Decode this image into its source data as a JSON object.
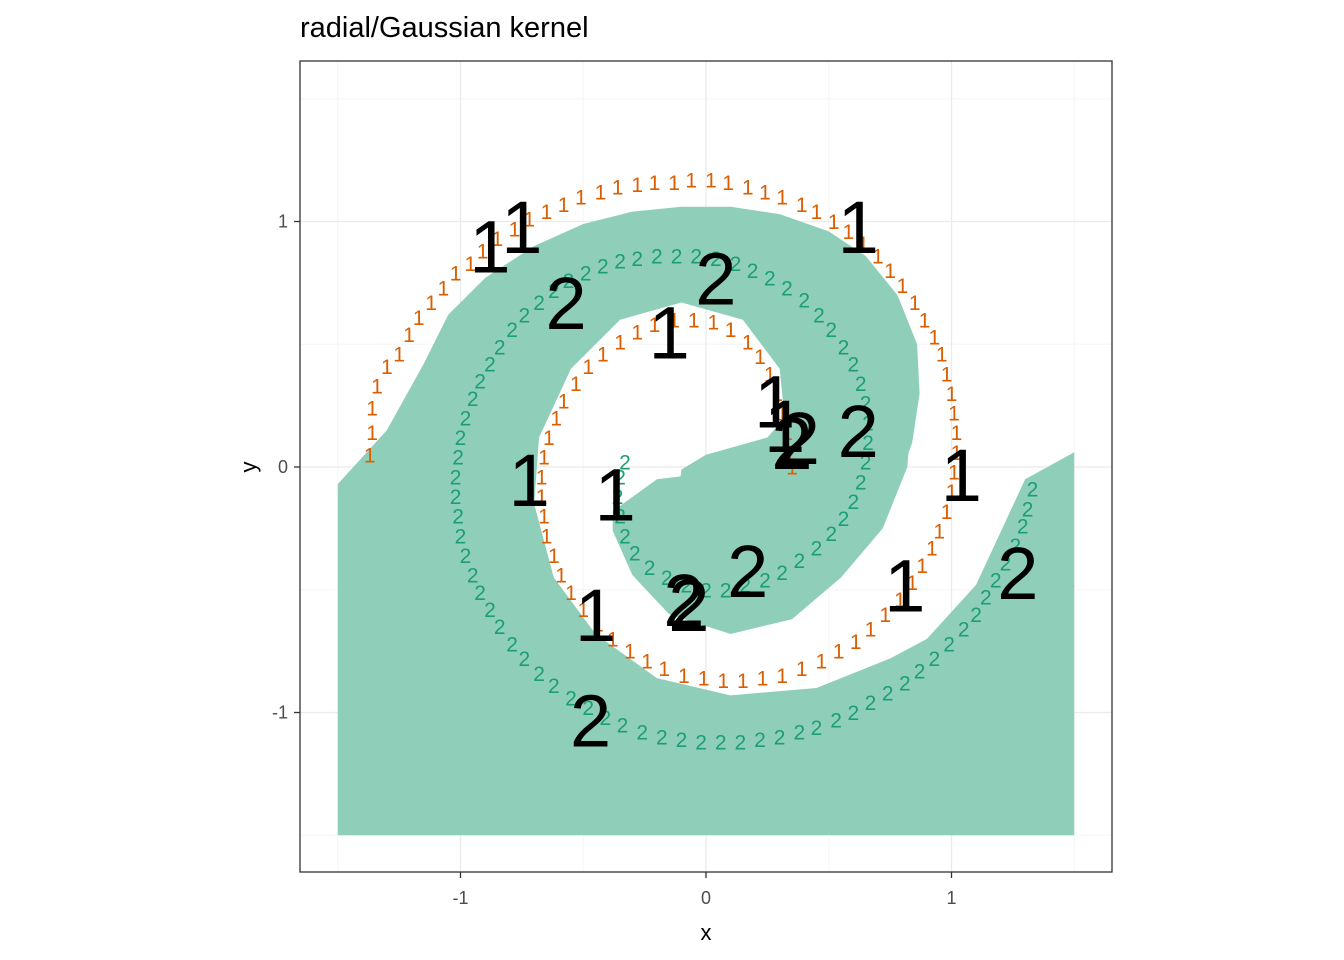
{
  "chart_data": {
    "type": "scatter",
    "title": "radial/Gaussian kernel",
    "xlabel": "x",
    "ylabel": "y",
    "xlim": [
      -1.65,
      1.65
    ],
    "ylim": [
      -1.65,
      1.65
    ],
    "x_ticks": [
      -1,
      0,
      1
    ],
    "y_ticks": [
      -1,
      0,
      1
    ],
    "x_tick_labels": [
      "-1",
      "0",
      "1"
    ],
    "y_tick_labels": [
      "-1",
      "0",
      "1"
    ],
    "grid": true,
    "panel_border": true,
    "colors": {
      "class_1": "#D95F02",
      "class_2": "#1B9E77",
      "region_2": "#8FCFBA",
      "support_vector": "#000000",
      "grid_major": "#ebebeb",
      "grid_minor": "#f5f5f5",
      "border": "#333333"
    },
    "decision_region_class": "2",
    "series": [
      {
        "name": "1",
        "role": "training points class 1",
        "points": [
          [
            -1.37,
            0.05
          ],
          [
            -1.36,
            0.14
          ],
          [
            -1.36,
            0.24
          ],
          [
            -1.34,
            0.33
          ],
          [
            -1.3,
            0.41
          ],
          [
            -1.25,
            0.46
          ],
          [
            -1.21,
            0.54
          ],
          [
            -1.17,
            0.61
          ],
          [
            -1.12,
            0.67
          ],
          [
            -1.07,
            0.73
          ],
          [
            -1.02,
            0.79
          ],
          [
            -0.96,
            0.83
          ],
          [
            -0.91,
            0.88
          ],
          [
            -0.85,
            0.93
          ],
          [
            -0.78,
            0.97
          ],
          [
            -0.72,
            1.01
          ],
          [
            -0.65,
            1.04
          ],
          [
            -0.58,
            1.07
          ],
          [
            -0.51,
            1.1
          ],
          [
            -0.43,
            1.12
          ],
          [
            -0.36,
            1.14
          ],
          [
            -0.28,
            1.15
          ],
          [
            -0.21,
            1.16
          ],
          [
            -0.13,
            1.16
          ],
          [
            -0.06,
            1.17
          ],
          [
            0.02,
            1.17
          ],
          [
            0.09,
            1.16
          ],
          [
            0.17,
            1.14
          ],
          [
            0.24,
            1.12
          ],
          [
            0.31,
            1.1
          ],
          [
            0.39,
            1.07
          ],
          [
            0.45,
            1.04
          ],
          [
            0.52,
            1.0
          ],
          [
            0.58,
            0.96
          ],
          [
            0.64,
            0.91
          ],
          [
            0.7,
            0.86
          ],
          [
            0.75,
            0.8
          ],
          [
            0.8,
            0.74
          ],
          [
            0.85,
            0.67
          ],
          [
            0.89,
            0.6
          ],
          [
            0.93,
            0.53
          ],
          [
            0.96,
            0.46
          ],
          [
            0.98,
            0.38
          ],
          [
            1.0,
            0.3
          ],
          [
            1.01,
            0.22
          ],
          [
            1.02,
            0.14
          ],
          [
            1.02,
            0.06
          ],
          [
            1.01,
            -0.02
          ],
          [
            1.0,
            -0.1
          ],
          [
            0.98,
            -0.18
          ],
          [
            0.95,
            -0.26
          ],
          [
            0.92,
            -0.33
          ],
          [
            0.88,
            -0.4
          ],
          [
            0.84,
            -0.47
          ],
          [
            0.79,
            -0.54
          ],
          [
            0.73,
            -0.6
          ],
          [
            0.67,
            -0.66
          ],
          [
            0.61,
            -0.71
          ],
          [
            0.54,
            -0.75
          ],
          [
            0.47,
            -0.79
          ],
          [
            0.39,
            -0.82
          ],
          [
            0.31,
            -0.85
          ],
          [
            0.23,
            -0.86
          ],
          [
            0.15,
            -0.87
          ],
          [
            0.07,
            -0.87
          ],
          [
            -0.01,
            -0.86
          ],
          [
            -0.09,
            -0.85
          ],
          [
            -0.17,
            -0.82
          ],
          [
            -0.24,
            -0.79
          ],
          [
            -0.31,
            -0.75
          ],
          [
            -0.38,
            -0.7
          ],
          [
            -0.44,
            -0.64
          ],
          [
            -0.5,
            -0.58
          ],
          [
            -0.55,
            -0.51
          ],
          [
            -0.59,
            -0.44
          ],
          [
            -0.62,
            -0.36
          ],
          [
            -0.65,
            -0.28
          ],
          [
            -0.66,
            -0.2
          ],
          [
            -0.67,
            -0.12
          ],
          [
            -0.67,
            -0.04
          ],
          [
            -0.66,
            0.04
          ],
          [
            -0.64,
            0.12
          ],
          [
            -0.61,
            0.2
          ],
          [
            -0.58,
            0.27
          ],
          [
            -0.53,
            0.34
          ],
          [
            -0.48,
            0.41
          ],
          [
            -0.42,
            0.46
          ],
          [
            -0.35,
            0.51
          ],
          [
            -0.28,
            0.55
          ],
          [
            -0.21,
            0.58
          ],
          [
            -0.13,
            0.6
          ],
          [
            -0.05,
            0.6
          ],
          [
            0.03,
            0.59
          ],
          [
            0.1,
            0.56
          ],
          [
            0.17,
            0.51
          ],
          [
            0.22,
            0.45
          ],
          [
            0.26,
            0.38
          ],
          [
            0.29,
            0.3
          ],
          [
            0.31,
            0.22
          ],
          [
            0.33,
            0.14
          ],
          [
            0.34,
            0.06
          ],
          [
            0.35,
            0.0
          ]
        ]
      },
      {
        "name": "2",
        "role": "training points class 2",
        "points": [
          [
            1.33,
            -0.09
          ],
          [
            1.31,
            -0.17
          ],
          [
            1.29,
            -0.24
          ],
          [
            1.26,
            -0.32
          ],
          [
            1.22,
            -0.39
          ],
          [
            1.18,
            -0.46
          ],
          [
            1.14,
            -0.53
          ],
          [
            1.1,
            -0.6
          ],
          [
            1.05,
            -0.66
          ],
          [
            0.99,
            -0.72
          ],
          [
            0.93,
            -0.78
          ],
          [
            0.87,
            -0.83
          ],
          [
            0.81,
            -0.88
          ],
          [
            0.74,
            -0.92
          ],
          [
            0.67,
            -0.96
          ],
          [
            0.6,
            -1.0
          ],
          [
            0.53,
            -1.03
          ],
          [
            0.45,
            -1.06
          ],
          [
            0.38,
            -1.08
          ],
          [
            0.3,
            -1.1
          ],
          [
            0.22,
            -1.11
          ],
          [
            0.14,
            -1.12
          ],
          [
            0.06,
            -1.12
          ],
          [
            -0.02,
            -1.12
          ],
          [
            -0.1,
            -1.11
          ],
          [
            -0.18,
            -1.1
          ],
          [
            -0.26,
            -1.08
          ],
          [
            -0.34,
            -1.05
          ],
          [
            -0.41,
            -1.02
          ],
          [
            -0.48,
            -0.98
          ],
          [
            -0.55,
            -0.94
          ],
          [
            -0.62,
            -0.89
          ],
          [
            -0.68,
            -0.84
          ],
          [
            -0.74,
            -0.78
          ],
          [
            -0.79,
            -0.72
          ],
          [
            -0.84,
            -0.65
          ],
          [
            -0.88,
            -0.58
          ],
          [
            -0.92,
            -0.51
          ],
          [
            -0.95,
            -0.44
          ],
          [
            -0.98,
            -0.36
          ],
          [
            -1.0,
            -0.28
          ],
          [
            -1.01,
            -0.2
          ],
          [
            -1.02,
            -0.12
          ],
          [
            -1.02,
            -0.04
          ],
          [
            -1.01,
            0.04
          ],
          [
            -1.0,
            0.12
          ],
          [
            -0.98,
            0.2
          ],
          [
            -0.95,
            0.28
          ],
          [
            -0.92,
            0.35
          ],
          [
            -0.88,
            0.42
          ],
          [
            -0.84,
            0.49
          ],
          [
            -0.79,
            0.56
          ],
          [
            -0.74,
            0.62
          ],
          [
            -0.68,
            0.67
          ],
          [
            -0.62,
            0.72
          ],
          [
            -0.56,
            0.76
          ],
          [
            -0.49,
            0.79
          ],
          [
            -0.42,
            0.82
          ],
          [
            -0.35,
            0.84
          ],
          [
            -0.28,
            0.85
          ],
          [
            -0.2,
            0.86
          ],
          [
            -0.12,
            0.86
          ],
          [
            -0.04,
            0.86
          ],
          [
            0.04,
            0.85
          ],
          [
            0.12,
            0.83
          ],
          [
            0.19,
            0.8
          ],
          [
            0.26,
            0.77
          ],
          [
            0.33,
            0.73
          ],
          [
            0.4,
            0.68
          ],
          [
            0.46,
            0.62
          ],
          [
            0.51,
            0.56
          ],
          [
            0.56,
            0.49
          ],
          [
            0.6,
            0.42
          ],
          [
            0.63,
            0.34
          ],
          [
            0.65,
            0.26
          ],
          [
            0.66,
            0.18
          ],
          [
            0.66,
            0.1
          ],
          [
            0.65,
            0.02
          ],
          [
            0.63,
            -0.06
          ],
          [
            0.6,
            -0.14
          ],
          [
            0.56,
            -0.21
          ],
          [
            0.51,
            -0.27
          ],
          [
            0.45,
            -0.33
          ],
          [
            0.38,
            -0.38
          ],
          [
            0.31,
            -0.43
          ],
          [
            0.24,
            -0.46
          ],
          [
            0.16,
            -0.48
          ],
          [
            0.08,
            -0.5
          ],
          [
            0.0,
            -0.5
          ],
          [
            -0.08,
            -0.48
          ],
          [
            -0.16,
            -0.45
          ],
          [
            -0.23,
            -0.41
          ],
          [
            -0.29,
            -0.35
          ],
          [
            -0.33,
            -0.28
          ],
          [
            -0.35,
            -0.2
          ],
          [
            -0.36,
            -0.12
          ],
          [
            -0.35,
            -0.04
          ],
          [
            -0.33,
            0.02
          ]
        ]
      },
      {
        "name": "1",
        "role": "support vectors class 1",
        "points": [
          [
            -0.88,
            0.9
          ],
          [
            -0.75,
            0.98
          ],
          [
            0.62,
            0.98
          ],
          [
            -0.15,
            0.55
          ],
          [
            0.28,
            0.27
          ],
          [
            0.32,
            0.17
          ],
          [
            -0.72,
            -0.05
          ],
          [
            -0.37,
            -0.11
          ],
          [
            -0.45,
            -0.6
          ],
          [
            0.81,
            -0.48
          ],
          [
            1.04,
            -0.03
          ]
        ]
      },
      {
        "name": "2",
        "role": "support vectors class 2",
        "points": [
          [
            -0.57,
            0.67
          ],
          [
            0.04,
            0.77
          ],
          [
            0.35,
            0.1
          ],
          [
            0.38,
            0.12
          ],
          [
            0.62,
            0.15
          ],
          [
            -0.09,
            -0.54
          ],
          [
            -0.07,
            -0.56
          ],
          [
            0.17,
            -0.42
          ],
          [
            1.27,
            -0.43
          ],
          [
            -0.47,
            -1.03
          ]
        ]
      }
    ],
    "decision_region": {
      "outer_upper_boundary": [
        [
          -1.5,
          -0.07
        ],
        [
          -1.3,
          0.15
        ],
        [
          -1.15,
          0.42
        ],
        [
          -1.05,
          0.62
        ],
        [
          -0.9,
          0.77
        ],
        [
          -0.7,
          0.9
        ],
        [
          -0.5,
          0.99
        ],
        [
          -0.3,
          1.04
        ],
        [
          -0.1,
          1.06
        ],
        [
          0.1,
          1.06
        ],
        [
          0.3,
          1.03
        ],
        [
          0.5,
          0.96
        ],
        [
          0.65,
          0.86
        ],
        [
          0.78,
          0.7
        ],
        [
          0.86,
          0.5
        ],
        [
          0.87,
          0.3
        ],
        [
          0.84,
          0.1
        ],
        [
          0.77,
          -0.1
        ],
        [
          0.65,
          -0.28
        ],
        [
          0.5,
          -0.4
        ],
        [
          0.3,
          -0.45
        ],
        [
          0.1,
          -0.44
        ],
        [
          -0.05,
          -0.34
        ],
        [
          -0.12,
          -0.16
        ],
        [
          -0.1,
          -0.01
        ],
        [
          0.0,
          0.05
        ],
        [
          0.25,
          0.12
        ],
        [
          0.32,
          0.2
        ],
        [
          0.3,
          0.4
        ],
        [
          0.15,
          0.6
        ],
        [
          -0.1,
          0.67
        ],
        [
          -0.35,
          0.6
        ],
        [
          -0.55,
          0.4
        ],
        [
          -0.68,
          0.12
        ],
        [
          -0.7,
          -0.15
        ],
        [
          -0.62,
          -0.45
        ],
        [
          -0.45,
          -0.68
        ],
        [
          -0.2,
          -0.86
        ],
        [
          0.1,
          -0.93
        ],
        [
          0.45,
          -0.9
        ],
        [
          0.75,
          -0.78
        ],
        [
          0.9,
          -0.7
        ],
        [
          1.1,
          -0.48
        ],
        [
          1.3,
          -0.05
        ],
        [
          1.5,
          0.06
        ]
      ],
      "inner_region_boundary": [
        [
          -0.38,
          -0.26
        ],
        [
          -0.3,
          -0.44
        ],
        [
          -0.15,
          -0.6
        ],
        [
          0.1,
          -0.68
        ],
        [
          0.35,
          -0.62
        ],
        [
          0.55,
          -0.45
        ],
        [
          0.72,
          -0.25
        ],
        [
          0.82,
          0.0
        ],
        [
          0.84,
          0.25
        ],
        [
          0.78,
          0.5
        ],
        [
          0.7,
          0.6
        ],
        [
          0.6,
          0.36
        ],
        [
          0.4,
          0.14
        ],
        [
          0.25,
          0.03
        ],
        [
          0.05,
          -0.02
        ],
        [
          -0.2,
          -0.05
        ],
        [
          -0.38,
          -0.18
        ]
      ]
    }
  }
}
